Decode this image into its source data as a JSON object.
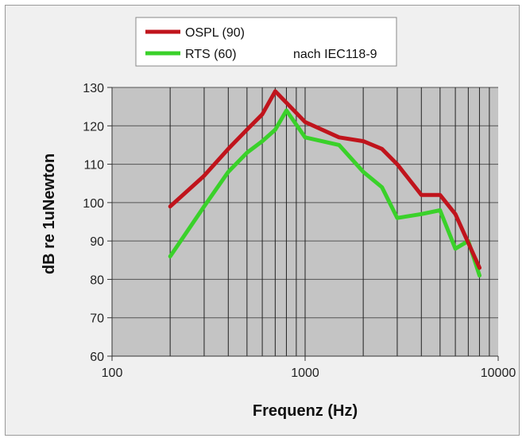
{
  "chart_data": {
    "type": "line",
    "xscale": "log",
    "xlabel": "Frequenz (Hz)",
    "ylabel": "dB re 1uNewton",
    "xlim": [
      100,
      10000
    ],
    "ylim": [
      60,
      130
    ],
    "xticks": [
      100,
      1000,
      10000
    ],
    "xtick_labels": [
      "100",
      "1000",
      "10000"
    ],
    "yticks": [
      60,
      70,
      80,
      90,
      100,
      110,
      120,
      130
    ],
    "ytick_labels": [
      "60",
      "70",
      "80",
      "90",
      "100",
      "110",
      "120",
      "130"
    ],
    "grid": true,
    "legend_position": "top",
    "legend_note": "nach IEC118-9",
    "series": [
      {
        "name": "OSPL (90)",
        "color": "#c0141c",
        "x": [
          200,
          300,
          400,
          500,
          600,
          700,
          800,
          1000,
          1500,
          2000,
          2500,
          3000,
          4000,
          5000,
          6000,
          8000
        ],
        "y": [
          99,
          107,
          114,
          119,
          123,
          129,
          126,
          121,
          117,
          116,
          114,
          110,
          102,
          102,
          97,
          83
        ]
      },
      {
        "name": "RTS (60)",
        "color": "#3ad12a",
        "x": [
          200,
          300,
          400,
          500,
          600,
          700,
          800,
          1000,
          1500,
          2000,
          2500,
          3000,
          4000,
          5000,
          6000,
          7000,
          8000
        ],
        "y": [
          86,
          99,
          108,
          113,
          116,
          119,
          124,
          117,
          115,
          108,
          104,
          96,
          97,
          98,
          88,
          90,
          81
        ]
      }
    ]
  }
}
